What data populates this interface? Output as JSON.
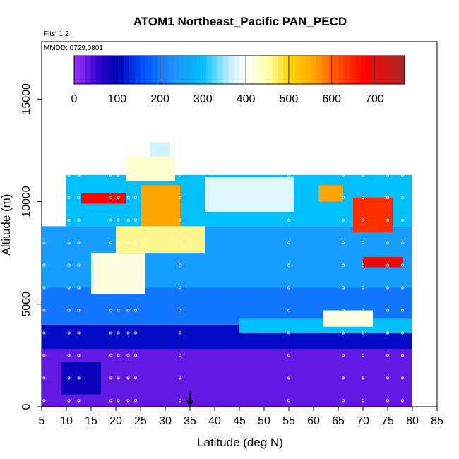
{
  "chart_data": {
    "type": "heatmap",
    "title": "ATOM1 Northeast_Pacific PAN_PECD",
    "flights_label": "Flts: 1,2",
    "dates_label": "MMDD: 0729,0801",
    "xlabel": "Latitude (deg N)",
    "ylabel": "Altitude (m)",
    "xlim": [
      5,
      85
    ],
    "ylim": [
      0,
      17800
    ],
    "x_ticks": [
      "5",
      "10",
      "15",
      "20",
      "25",
      "30",
      "35",
      "40",
      "45",
      "50",
      "55",
      "60",
      "65",
      "70",
      "75",
      "80",
      "85"
    ],
    "y_ticks": [
      "0",
      "5000",
      "10000",
      "15000"
    ],
    "colorbar": {
      "range": [
        0,
        770
      ],
      "ticks": [
        "0",
        "100",
        "200",
        "300",
        "400",
        "500",
        "600",
        "700"
      ],
      "stops": [
        {
          "v": 0,
          "color": "#9b30ff"
        },
        {
          "v": 60,
          "color": "#2a00c8"
        },
        {
          "v": 100,
          "color": "#0000b8"
        },
        {
          "v": 160,
          "color": "#0050ff"
        },
        {
          "v": 230,
          "color": "#1e90ff"
        },
        {
          "v": 300,
          "color": "#00bfff"
        },
        {
          "v": 360,
          "color": "#bfefff"
        },
        {
          "v": 400,
          "color": "#ffffff"
        },
        {
          "v": 450,
          "color": "#ffffb0"
        },
        {
          "v": 500,
          "color": "#ffd700"
        },
        {
          "v": 560,
          "color": "#ffa500"
        },
        {
          "v": 620,
          "color": "#ff4500"
        },
        {
          "v": 680,
          "color": "#ff0000"
        },
        {
          "v": 770,
          "color": "#a52a2a"
        }
      ]
    },
    "arrow_marker": {
      "x": 35
    },
    "profile_latitudes": [
      5.5,
      10.5,
      12.5,
      19,
      20.5,
      22.5,
      24,
      33,
      55,
      66,
      70,
      75,
      78
    ],
    "regions": [
      {
        "lat": [
          5,
          80
        ],
        "alt": [
          0,
          2800
        ],
        "value": 30
      },
      {
        "lat": [
          9,
          17
        ],
        "alt": [
          600,
          2200
        ],
        "value": 90
      },
      {
        "lat": [
          5,
          80
        ],
        "alt": [
          2800,
          4000
        ],
        "value": 110
      },
      {
        "lat": [
          5,
          80
        ],
        "alt": [
          4000,
          5800
        ],
        "value": 200
      },
      {
        "lat": [
          45,
          80
        ],
        "alt": [
          3600,
          4300
        ],
        "value": 300
      },
      {
        "lat": [
          62,
          72
        ],
        "alt": [
          3900,
          4700
        ],
        "value": 420
      },
      {
        "lat": [
          5,
          80
        ],
        "alt": [
          5800,
          8800
        ],
        "value": 250
      },
      {
        "lat": [
          15,
          26
        ],
        "alt": [
          5500,
          7500
        ],
        "value": 420
      },
      {
        "lat": [
          20,
          38
        ],
        "alt": [
          7500,
          9500
        ],
        "value": 460
      },
      {
        "lat": [
          70,
          78
        ],
        "alt": [
          6800,
          7300
        ],
        "value": 700
      },
      {
        "lat": [
          10,
          80
        ],
        "alt": [
          8800,
          11300
        ],
        "value": 300
      },
      {
        "lat": [
          22,
          32
        ],
        "alt": [
          11000,
          12200
        ],
        "value": 430
      },
      {
        "lat": [
          38,
          56
        ],
        "alt": [
          9500,
          11200
        ],
        "value": 380
      },
      {
        "lat": [
          13,
          22
        ],
        "alt": [
          9900,
          10400
        ],
        "value": 680
      },
      {
        "lat": [
          25,
          33
        ],
        "alt": [
          8800,
          10800
        ],
        "value": 560
      },
      {
        "lat": [
          68,
          76
        ],
        "alt": [
          8500,
          10200
        ],
        "value": 640
      },
      {
        "lat": [
          61,
          66
        ],
        "alt": [
          10000,
          10800
        ],
        "value": 560
      },
      {
        "lat": [
          27,
          31
        ],
        "alt": [
          12200,
          12900
        ],
        "value": 370
      }
    ]
  }
}
